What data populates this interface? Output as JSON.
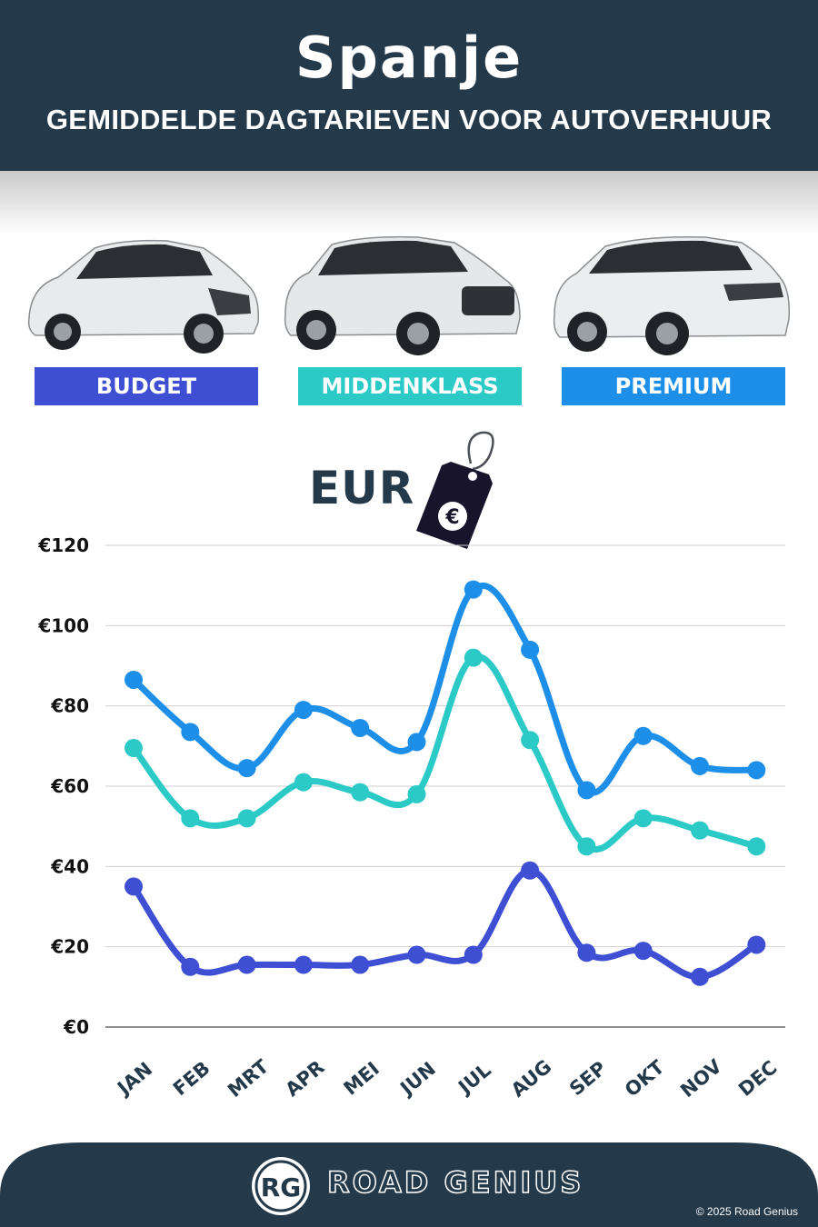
{
  "header": {
    "title": "Spanje",
    "subtitle": "GEMIDDELDE DAGTARIEVEN VOOR AUTOVERHUUR"
  },
  "categories": [
    {
      "label": "BUDGET",
      "color": "#3f4fd4"
    },
    {
      "label": "MIDDENKLASS",
      "color": "#2ccac7"
    },
    {
      "label": "PREMIUM",
      "color": "#1e8fe8"
    }
  ],
  "currency": {
    "label": "EUR",
    "symbol": "€"
  },
  "chart_data": {
    "type": "line",
    "categories": [
      "JAN",
      "FEB",
      "MRT",
      "APR",
      "MEI",
      "JUN",
      "JUL",
      "AUG",
      "SEP",
      "OKT",
      "NOV",
      "DEC"
    ],
    "yticks": [
      "€0",
      "€20",
      "€40",
      "€60",
      "€80",
      "€100",
      "€120"
    ],
    "ylim": [
      0,
      120
    ],
    "grid": true,
    "series": [
      {
        "name": "BUDGET",
        "color": "#3f4fd4",
        "values": [
          35,
          15,
          15.5,
          15.5,
          15.5,
          18,
          18,
          39,
          18.5,
          19,
          12.5,
          20.5
        ]
      },
      {
        "name": "MIDDENKLASS",
        "color": "#2ccac7",
        "values": [
          69.5,
          52,
          52,
          61,
          58.5,
          58,
          92,
          71.5,
          45,
          52,
          49,
          45
        ]
      },
      {
        "name": "PREMIUM",
        "color": "#1e8fe8",
        "values": [
          86.5,
          73.5,
          64.5,
          79,
          74.5,
          71,
          109,
          94,
          59,
          72.5,
          65,
          64
        ]
      }
    ]
  },
  "footer": {
    "brand": "ROAD GENIUS",
    "logo_text": "RG",
    "copyright": "© 2025 Road Genius"
  }
}
